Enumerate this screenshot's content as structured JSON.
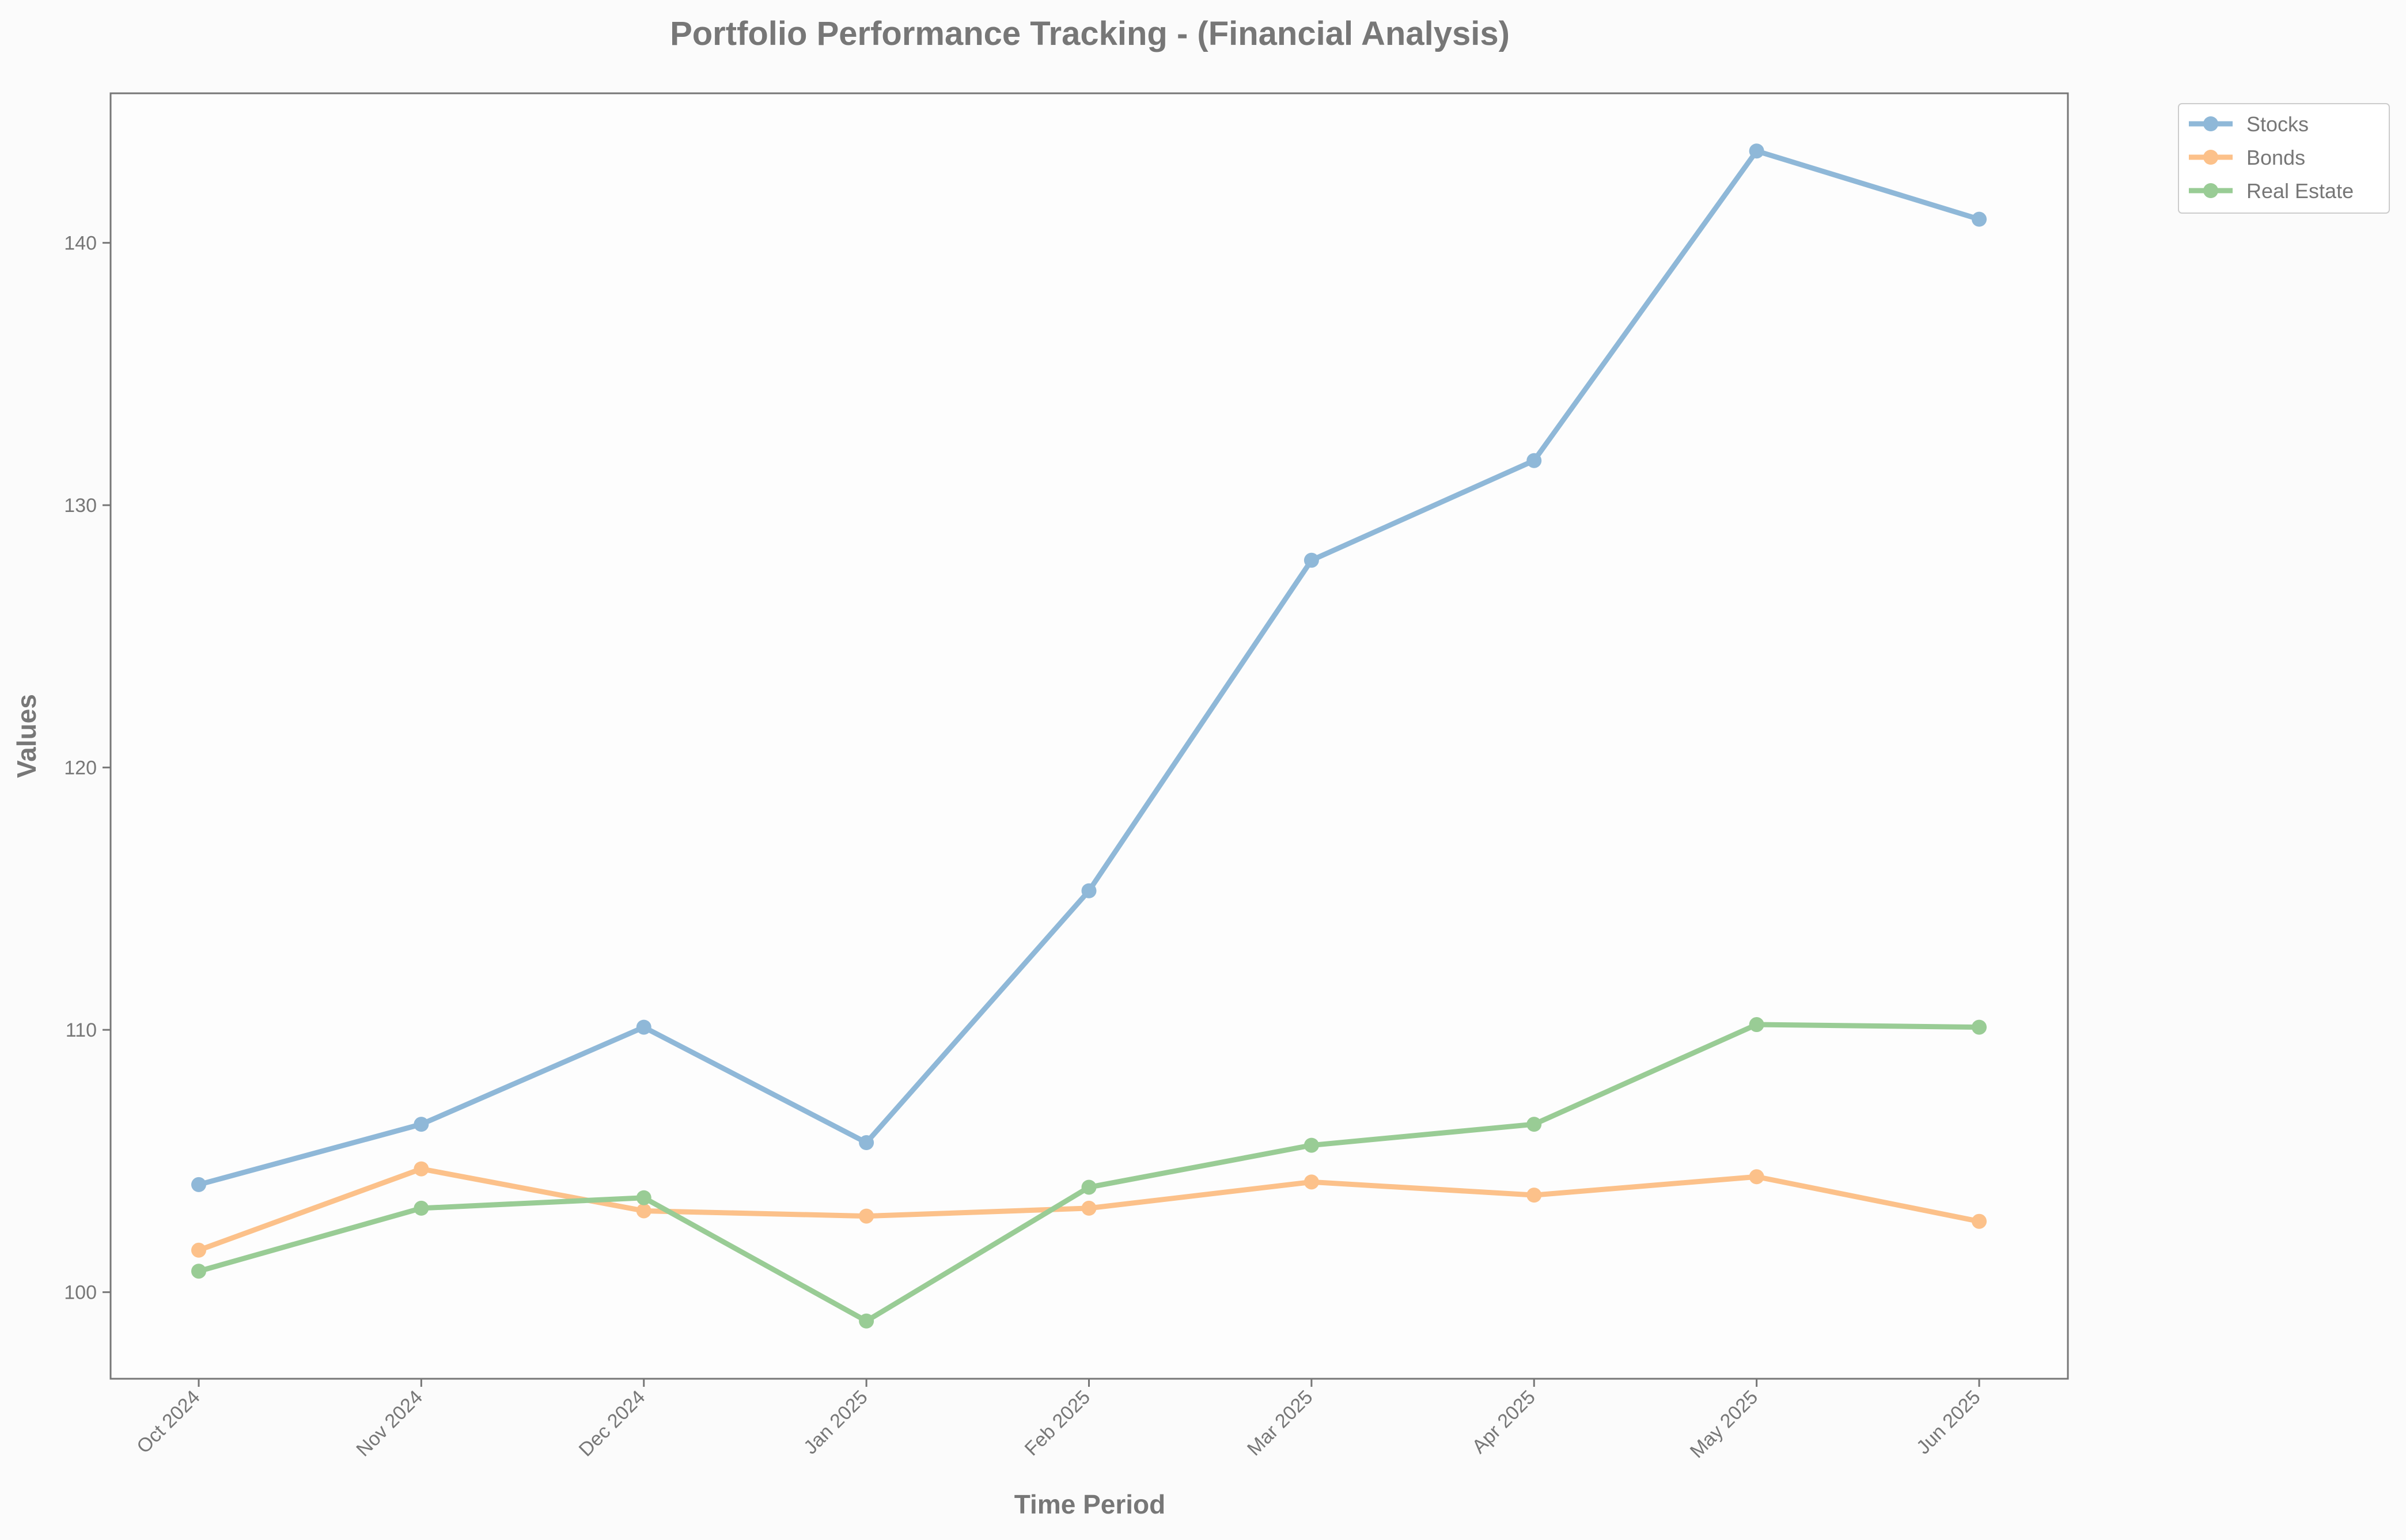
{
  "chart_data": {
    "type": "line",
    "title": "Portfolio Performance Tracking - (Financial Analysis)",
    "xlabel": "Time Period",
    "ylabel": "Values",
    "categories": [
      "Oct 2024",
      "Nov 2024",
      "Dec 2024",
      "Jan 2025",
      "Feb 2025",
      "Mar 2025",
      "Apr 2025",
      "May 2025",
      "Jun 2025"
    ],
    "y_ticks": [
      100,
      110,
      120,
      130,
      140
    ],
    "ylim": [
      96.7,
      145.7
    ],
    "grid": false,
    "legend_position": "outside top-right",
    "series": [
      {
        "name": "Stocks",
        "color": "#8fb8d8",
        "values": [
          104.1,
          106.4,
          110.1,
          105.7,
          115.3,
          127.9,
          131.7,
          143.5,
          140.9
        ]
      },
      {
        "name": "Bonds",
        "color": "#fcc18a",
        "values": [
          101.6,
          104.7,
          103.1,
          102.9,
          103.2,
          104.2,
          103.7,
          104.4,
          102.7
        ]
      },
      {
        "name": "Real Estate",
        "color": "#99cc95",
        "values": [
          100.8,
          103.2,
          103.6,
          98.9,
          104.0,
          105.6,
          106.4,
          110.2,
          110.1
        ]
      }
    ]
  }
}
